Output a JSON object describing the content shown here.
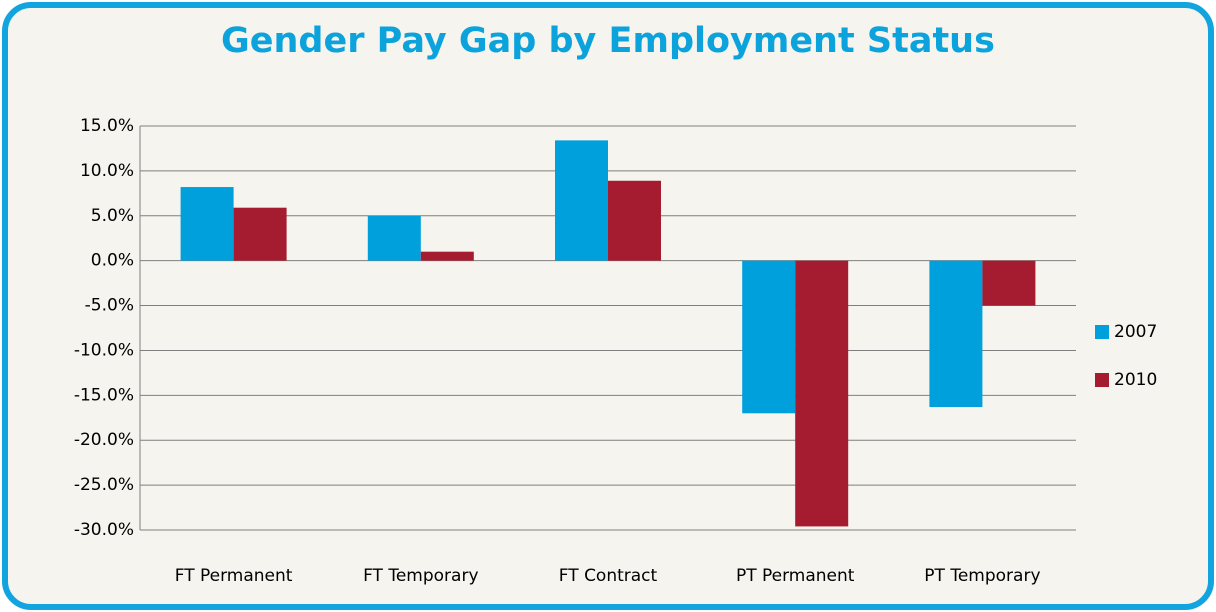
{
  "chart_data": {
    "type": "bar",
    "title": "Gender Pay Gap by Employment Status",
    "categories": [
      "FT  Permanent",
      "FT  Temporary",
      "FT Contract",
      "PT  Permanent",
      "PT  Temporary"
    ],
    "series": [
      {
        "name": "2007",
        "color": "#00a0dc",
        "values": [
          8.2,
          5.0,
          13.4,
          -17.0,
          -16.3
        ]
      },
      {
        "name": "2010",
        "color": "#a51c30",
        "values": [
          5.9,
          1.0,
          8.9,
          -29.6,
          -5.0
        ]
      }
    ],
    "ylim": [
      -30,
      15
    ],
    "yticks": [
      {
        "value": 15,
        "label": "15.0%"
      },
      {
        "value": 10,
        "label": "10.0%"
      },
      {
        "value": 5,
        "label": "5.0%"
      },
      {
        "value": 0,
        "label": "0.0%"
      },
      {
        "value": -5,
        "label": "-5.0%"
      },
      {
        "value": -10,
        "label": "-10.0%"
      },
      {
        "value": -15,
        "label": "-15.0%"
      },
      {
        "value": -20,
        "label": "-20.0%"
      },
      {
        "value": -25,
        "label": "-25.0%"
      },
      {
        "value": -30,
        "label": "-30.0%"
      }
    ],
    "grid": true,
    "legend": "right"
  }
}
